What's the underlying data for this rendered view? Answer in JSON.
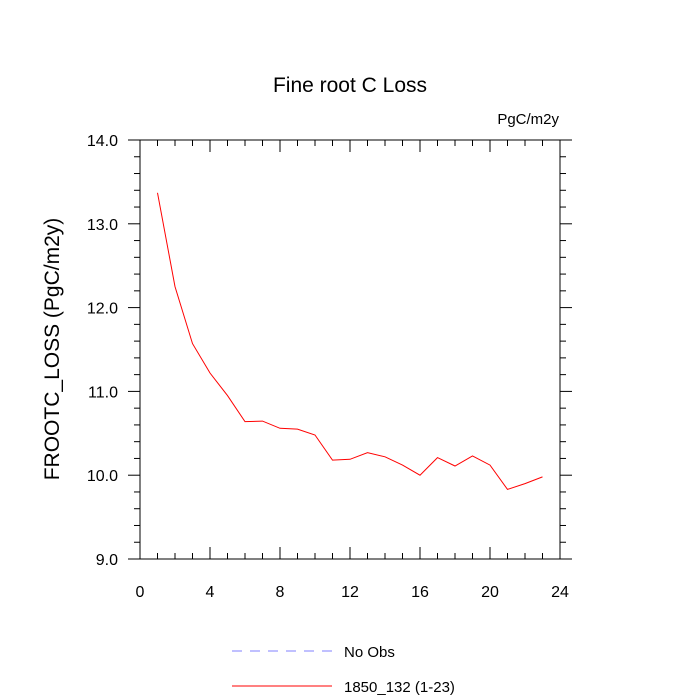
{
  "chart_data": {
    "type": "line",
    "title": "Fine root C Loss",
    "units_label": "PgC/m2y",
    "ylabel": "FROOTC_LOSS  (PgC/m2y)",
    "xlabel": "",
    "xlim": [
      0,
      24
    ],
    "ylim": [
      9.0,
      14.0
    ],
    "x_ticks": [
      0,
      4,
      8,
      12,
      16,
      20,
      24
    ],
    "x_tick_labels": [
      "0",
      "4",
      "8",
      "12",
      "16",
      "20",
      "24"
    ],
    "y_ticks": [
      9.0,
      10.0,
      11.0,
      12.0,
      13.0,
      14.0
    ],
    "y_tick_labels": [
      "9.0",
      "10.0",
      "11.0",
      "12.0",
      "13.0",
      "14.0"
    ],
    "grid": false,
    "legend_position": "bottom-center",
    "series": [
      {
        "name": "No Obs",
        "color": "#8080ff",
        "dash": "dashed",
        "x": [],
        "y": []
      },
      {
        "name": "1850_132 (1-23)",
        "color": "#ff0000",
        "dash": "solid",
        "x": [
          1,
          2,
          3,
          4,
          5,
          6,
          7,
          8,
          9,
          10,
          11,
          12,
          13,
          14,
          15,
          16,
          17,
          18,
          19,
          20,
          21,
          22,
          23
        ],
        "y": [
          13.37,
          12.25,
          11.57,
          11.22,
          10.95,
          10.64,
          10.645,
          10.56,
          10.55,
          10.48,
          10.18,
          10.19,
          10.27,
          10.22,
          10.12,
          10.0,
          10.21,
          10.11,
          10.23,
          10.12,
          9.83,
          9.9,
          9.98
        ]
      }
    ]
  }
}
